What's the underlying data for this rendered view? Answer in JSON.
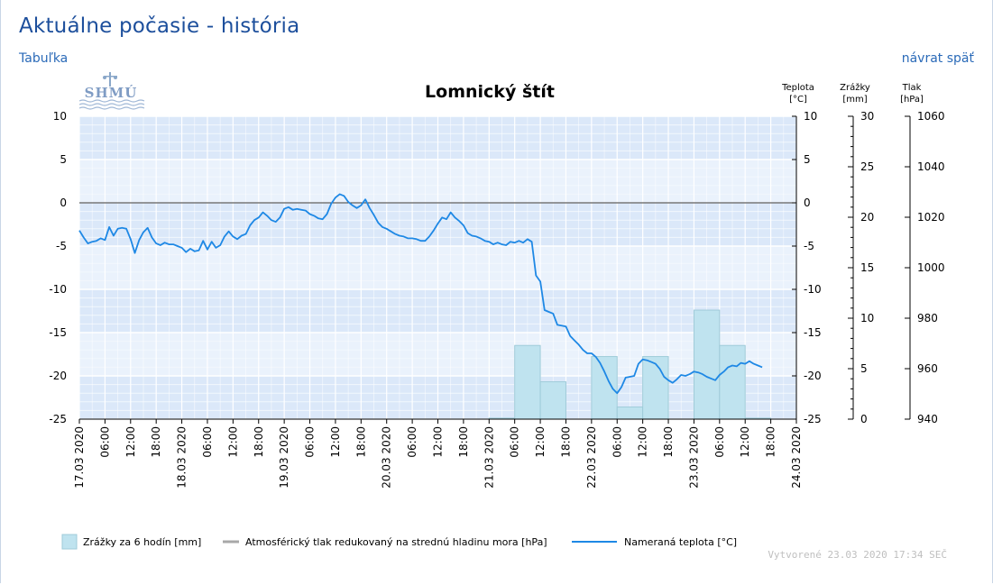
{
  "page": {
    "title": "Aktuálne počasie - história",
    "table_link": "Tabuľka",
    "back_link": "návrat späť",
    "logo_text": "SHMÚ"
  },
  "chart_data": {
    "type": "line",
    "title": "Lomnický štít",
    "axes": {
      "temperature": {
        "label_line1": "Teplota",
        "label_line2": "[°C]",
        "range": [
          -25,
          10
        ],
        "ticks": [
          10,
          5,
          0,
          -5,
          -10,
          -15,
          -20,
          -25
        ]
      },
      "precipitation": {
        "label_line1": "Zrážky",
        "label_line2": "[mm]",
        "range": [
          0,
          30
        ],
        "ticks": [
          30,
          25,
          20,
          15,
          10,
          5,
          0
        ]
      },
      "pressure": {
        "label_line1": "Tlak",
        "label_line2": "[hPa]",
        "range": [
          940,
          1060
        ],
        "ticks": [
          1060,
          1040,
          1020,
          1000,
          980,
          960,
          940
        ]
      }
    },
    "x_range_hours": [
      0,
      168
    ],
    "x_ticks": [
      "17.03 2020",
      "06:00",
      "12:00",
      "18:00",
      "18.03 2020",
      "06:00",
      "12:00",
      "18:00",
      "19.03 2020",
      "06:00",
      "12:00",
      "18:00",
      "20.03 2020",
      "06:00",
      "12:00",
      "18:00",
      "21.03 2020",
      "06:00",
      "12:00",
      "18:00",
      "22.03 2020",
      "06:00",
      "12:00",
      "18:00",
      "23.03 2020",
      "06:00",
      "12:00",
      "18:00",
      "24.03 2020"
    ],
    "grid": true,
    "legend_position": "bottom",
    "series": [
      {
        "name": "Zrážky za 6 hodín [mm]",
        "kind": "bar",
        "axis": "precipitation",
        "color": "#bfe3ef",
        "bars": [
          {
            "start_h": 96,
            "end_h": 102,
            "value": 0.1
          },
          {
            "start_h": 102,
            "end_h": 108,
            "value": 7.3
          },
          {
            "start_h": 108,
            "end_h": 114,
            "value": 3.7
          },
          {
            "start_h": 120,
            "end_h": 126,
            "value": 6.2
          },
          {
            "start_h": 126,
            "end_h": 132,
            "value": 1.2
          },
          {
            "start_h": 132,
            "end_h": 138,
            "value": 6.2
          },
          {
            "start_h": 144,
            "end_h": 150,
            "value": 10.8
          },
          {
            "start_h": 150,
            "end_h": 156,
            "value": 7.3
          },
          {
            "start_h": 156,
            "end_h": 162,
            "value": 0.1
          }
        ]
      },
      {
        "name": "Atmosférický tlak redukovaný na strednú hladinu mora [hPa]",
        "kind": "line",
        "axis": "pressure",
        "color": "#a8a8a8",
        "values": []
      },
      {
        "name": "Nameraná teplota [°C]",
        "kind": "line",
        "axis": "temperature",
        "color": "#1e88e5",
        "points": [
          [
            0,
            -3.2
          ],
          [
            1,
            -4.0
          ],
          [
            2,
            -4.7
          ],
          [
            3,
            -4.5
          ],
          [
            4,
            -4.4
          ],
          [
            5,
            -4.1
          ],
          [
            6,
            -4.3
          ],
          [
            7,
            -2.8
          ],
          [
            8,
            -3.8
          ],
          [
            9,
            -3.0
          ],
          [
            10,
            -2.9
          ],
          [
            11,
            -3.0
          ],
          [
            12,
            -4.2
          ],
          [
            13,
            -5.8
          ],
          [
            14,
            -4.3
          ],
          [
            15,
            -3.4
          ],
          [
            16,
            -2.9
          ],
          [
            17,
            -4.0
          ],
          [
            18,
            -4.7
          ],
          [
            19,
            -4.9
          ],
          [
            20,
            -4.6
          ],
          [
            21,
            -4.8
          ],
          [
            22,
            -4.8
          ],
          [
            23,
            -5.0
          ],
          [
            24,
            -5.2
          ],
          [
            25,
            -5.7
          ],
          [
            26,
            -5.3
          ],
          [
            27,
            -5.6
          ],
          [
            28,
            -5.5
          ],
          [
            29,
            -4.4
          ],
          [
            30,
            -5.4
          ],
          [
            31,
            -4.5
          ],
          [
            32,
            -5.2
          ],
          [
            33,
            -4.9
          ],
          [
            34,
            -3.9
          ],
          [
            35,
            -3.3
          ],
          [
            36,
            -3.9
          ],
          [
            37,
            -4.2
          ],
          [
            38,
            -3.8
          ],
          [
            39,
            -3.6
          ],
          [
            40,
            -2.6
          ],
          [
            41,
            -2.0
          ],
          [
            42,
            -1.7
          ],
          [
            43,
            -1.1
          ],
          [
            44,
            -1.5
          ],
          [
            45,
            -2.0
          ],
          [
            46,
            -2.2
          ],
          [
            47,
            -1.7
          ],
          [
            48,
            -0.7
          ],
          [
            49,
            -0.5
          ],
          [
            50,
            -0.8
          ],
          [
            51,
            -0.7
          ],
          [
            52,
            -0.8
          ],
          [
            53,
            -0.9
          ],
          [
            54,
            -1.3
          ],
          [
            55,
            -1.5
          ],
          [
            56,
            -1.8
          ],
          [
            57,
            -1.9
          ],
          [
            58,
            -1.3
          ],
          [
            59,
            -0.1
          ],
          [
            60,
            0.6
          ],
          [
            61,
            1.0
          ],
          [
            62,
            0.8
          ],
          [
            63,
            0.1
          ],
          [
            64,
            -0.3
          ],
          [
            65,
            -0.6
          ],
          [
            66,
            -0.3
          ],
          [
            67,
            0.4
          ],
          [
            68,
            -0.6
          ],
          [
            69,
            -1.4
          ],
          [
            70,
            -2.3
          ],
          [
            71,
            -2.8
          ],
          [
            72,
            -3.0
          ],
          [
            73,
            -3.3
          ],
          [
            74,
            -3.6
          ],
          [
            75,
            -3.8
          ],
          [
            76,
            -3.9
          ],
          [
            77,
            -4.1
          ],
          [
            78,
            -4.1
          ],
          [
            79,
            -4.2
          ],
          [
            80,
            -4.4
          ],
          [
            81,
            -4.4
          ],
          [
            82,
            -3.9
          ],
          [
            83,
            -3.2
          ],
          [
            84,
            -2.4
          ],
          [
            85,
            -1.7
          ],
          [
            86,
            -1.9
          ],
          [
            87,
            -1.1
          ],
          [
            88,
            -1.7
          ],
          [
            89,
            -2.1
          ],
          [
            90,
            -2.6
          ],
          [
            91,
            -3.5
          ],
          [
            92,
            -3.8
          ],
          [
            93,
            -3.9
          ],
          [
            94,
            -4.1
          ],
          [
            95,
            -4.4
          ],
          [
            96,
            -4.5
          ],
          [
            97,
            -4.8
          ],
          [
            98,
            -4.6
          ],
          [
            99,
            -4.8
          ],
          [
            100,
            -4.9
          ],
          [
            101,
            -4.5
          ],
          [
            102,
            -4.6
          ],
          [
            103,
            -4.4
          ],
          [
            104,
            -4.6
          ],
          [
            105,
            -4.2
          ],
          [
            106,
            -4.5
          ],
          [
            107,
            -8.4
          ],
          [
            108,
            -9.1
          ],
          [
            109,
            -12.4
          ],
          [
            110,
            -12.6
          ],
          [
            111,
            -12.8
          ],
          [
            112,
            -14.1
          ],
          [
            113,
            -14.2
          ],
          [
            114,
            -14.3
          ],
          [
            115,
            -15.4
          ],
          [
            116,
            -15.9
          ],
          [
            117,
            -16.4
          ],
          [
            118,
            -17.0
          ],
          [
            119,
            -17.4
          ],
          [
            120,
            -17.4
          ],
          [
            121,
            -17.8
          ],
          [
            122,
            -18.5
          ],
          [
            123,
            -19.5
          ],
          [
            124,
            -20.6
          ],
          [
            125,
            -21.5
          ],
          [
            126,
            -22.0
          ],
          [
            127,
            -21.3
          ],
          [
            128,
            -20.2
          ],
          [
            129,
            -20.1
          ],
          [
            130,
            -20.0
          ],
          [
            131,
            -18.6
          ],
          [
            132,
            -18.1
          ],
          [
            133,
            -18.2
          ],
          [
            134,
            -18.4
          ],
          [
            135,
            -18.6
          ],
          [
            136,
            -19.2
          ],
          [
            137,
            -20.1
          ],
          [
            138,
            -20.5
          ],
          [
            139,
            -20.8
          ],
          [
            140,
            -20.4
          ],
          [
            141,
            -19.9
          ],
          [
            142,
            -20.0
          ],
          [
            143,
            -19.8
          ],
          [
            144,
            -19.5
          ],
          [
            145,
            -19.6
          ],
          [
            146,
            -19.8
          ],
          [
            147,
            -20.1
          ],
          [
            148,
            -20.3
          ],
          [
            149,
            -20.5
          ],
          [
            150,
            -19.9
          ],
          [
            151,
            -19.5
          ],
          [
            152,
            -19.0
          ],
          [
            153,
            -18.8
          ],
          [
            154,
            -18.9
          ],
          [
            155,
            -18.5
          ],
          [
            156,
            -18.6
          ],
          [
            157,
            -18.3
          ],
          [
            158,
            -18.6
          ],
          [
            159,
            -18.8
          ],
          [
            160,
            -19.0
          ]
        ]
      }
    ],
    "created": "Vytvorené 23.03 2020 17:34 SEČ"
  }
}
